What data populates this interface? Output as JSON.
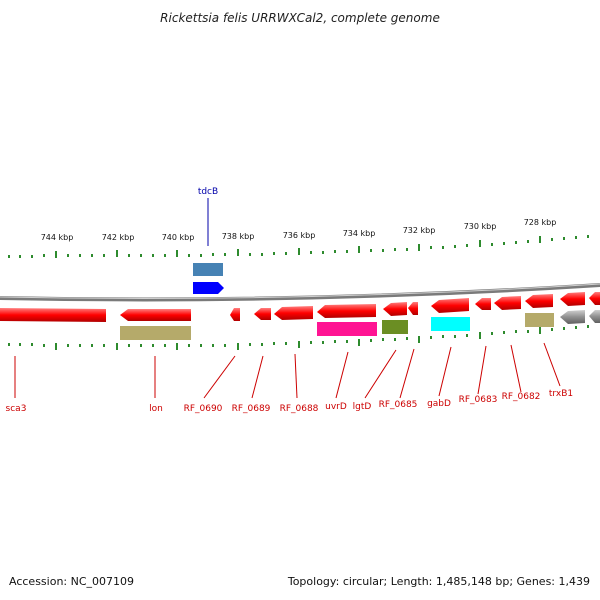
{
  "title": "Rickettsia felis URRWXCal2, complete genome",
  "accession": "Accession: NC_007109",
  "summary": "Topology: circular; Length: 1,485,148 bp; Genes: 1,439",
  "ruler_labels": [
    "744 kbp",
    "742 kbp",
    "740 kbp",
    "738 kbp",
    "736 kbp",
    "734 kbp",
    "732 kbp",
    "730 kbp",
    "728 kbp"
  ],
  "top_gene_labels": [
    "tdcB"
  ],
  "bottom_gene_labels": [
    "sca3",
    "lon",
    "RF_0690",
    "RF_0689",
    "RF_0688",
    "uvrD",
    "lgtD",
    "RF_0685",
    "gabD",
    "RF_0683",
    "RF_0682",
    "trxB1"
  ],
  "colors": {
    "cds": "#ff0000",
    "backbone": "#808080",
    "ticks": "#2e8b2e",
    "label_red": "#cc0000",
    "label_blue": "#0000aa",
    "cog_olive": "#b5aa6a",
    "cog_steel": "#4682b4",
    "cog_blue": "#0000ff",
    "cog_magenta": "#ff1493",
    "cog_green": "#6b8e23",
    "cog_cyan": "#00ffff",
    "cog_grey": "#b0b0b0"
  }
}
